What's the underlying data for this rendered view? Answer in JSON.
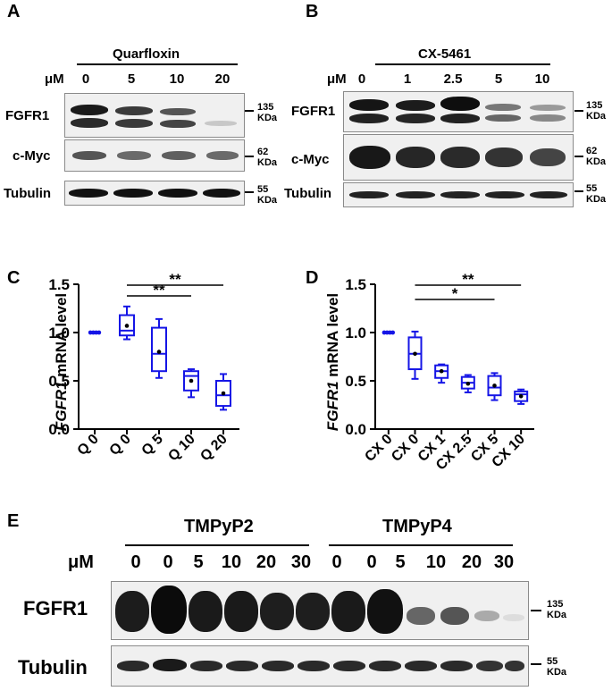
{
  "panelA": {
    "letter": "A",
    "drug": "Quarfloxin",
    "unit": "μM",
    "lanes": [
      "0",
      "5",
      "10",
      "20"
    ],
    "rows": [
      "FGFR1",
      "c-Myc",
      "Tubulin"
    ],
    "markers": [
      {
        "value": "135",
        "unit": "KDa"
      },
      {
        "value": "62",
        "unit": "KDa"
      },
      {
        "value": "55",
        "unit": "KDa"
      }
    ]
  },
  "panelB": {
    "letter": "B",
    "drug": "CX-5461",
    "unit": "μM",
    "lanes": [
      "0",
      "1",
      "2.5",
      "5",
      "10"
    ],
    "rows": [
      "FGFR1",
      "c-Myc",
      "Tubulin"
    ],
    "markers": [
      {
        "value": "135",
        "unit": "KDa"
      },
      {
        "value": "62",
        "unit": "KDa"
      },
      {
        "value": "55",
        "unit": "KDa"
      }
    ]
  },
  "panelE": {
    "letter": "E",
    "groups": [
      "TMPyP2",
      "TMPyP4"
    ],
    "unit": "μM",
    "lanes": [
      "0",
      "0",
      "5",
      "10",
      "20",
      "30",
      "0",
      "0",
      "5",
      "10",
      "20",
      "30"
    ],
    "rows": [
      "FGFR1",
      "Tubulin"
    ],
    "markers": [
      {
        "value": "135",
        "unit": "KDa"
      },
      {
        "value": "55",
        "unit": "KDa"
      }
    ]
  },
  "chart_data": [
    {
      "panel": "C",
      "type": "box",
      "ylabel_italic": "FGFR1",
      "ylabel_rest": " mRNA level",
      "ylim": [
        0,
        1.5
      ],
      "yticks": [
        "0.0",
        "0.5",
        "1.0",
        "1.5"
      ],
      "categories": [
        "Q 0",
        "Q 0",
        "Q 5",
        "Q 10",
        "Q 20"
      ],
      "boxes": [
        {
          "min": 1.0,
          "q1": 1.0,
          "median": 1.0,
          "q3": 1.0,
          "max": 1.0,
          "mean": 1.0
        },
        {
          "min": 0.93,
          "q1": 0.97,
          "median": 1.02,
          "q3": 1.18,
          "max": 1.27,
          "mean": 1.07
        },
        {
          "min": 0.53,
          "q1": 0.6,
          "median": 0.78,
          "q3": 1.05,
          "max": 1.14,
          "mean": 0.8
        },
        {
          "min": 0.33,
          "q1": 0.4,
          "median": 0.55,
          "q3": 0.6,
          "max": 0.62,
          "mean": 0.5
        },
        {
          "min": 0.2,
          "q1": 0.24,
          "median": 0.35,
          "q3": 0.5,
          "max": 0.57,
          "mean": 0.37
        }
      ],
      "significance": [
        {
          "label": "**",
          "from": 1,
          "to": 3
        },
        {
          "label": "**",
          "from": 1,
          "to": 4
        }
      ],
      "color": "#1515e6"
    },
    {
      "panel": "D",
      "type": "box",
      "ylabel_italic": "FGFR1",
      "ylabel_rest": " mRNA level",
      "ylim": [
        0,
        1.5
      ],
      "yticks": [
        "0.0",
        "0.5",
        "1.0",
        "1.5"
      ],
      "categories": [
        "CX 0",
        "CX 0",
        "CX 1",
        "CX 2.5",
        "CX 5",
        "CX 10"
      ],
      "boxes": [
        {
          "min": 1.0,
          "q1": 1.0,
          "median": 1.0,
          "q3": 1.0,
          "max": 1.0,
          "mean": 1.0
        },
        {
          "min": 0.52,
          "q1": 0.62,
          "median": 0.78,
          "q3": 0.95,
          "max": 1.01,
          "mean": 0.78
        },
        {
          "min": 0.48,
          "q1": 0.53,
          "median": 0.6,
          "q3": 0.66,
          "max": 0.67,
          "mean": 0.6
        },
        {
          "min": 0.38,
          "q1": 0.42,
          "median": 0.48,
          "q3": 0.54,
          "max": 0.56,
          "mean": 0.47
        },
        {
          "min": 0.3,
          "q1": 0.35,
          "median": 0.43,
          "q3": 0.55,
          "max": 0.58,
          "mean": 0.45
        },
        {
          "min": 0.26,
          "q1": 0.29,
          "median": 0.36,
          "q3": 0.39,
          "max": 0.41,
          "mean": 0.34
        }
      ],
      "significance": [
        {
          "label": "*",
          "from": 1,
          "to": 4
        },
        {
          "label": "**",
          "from": 1,
          "to": 5
        }
      ],
      "color": "#1515e6"
    }
  ]
}
